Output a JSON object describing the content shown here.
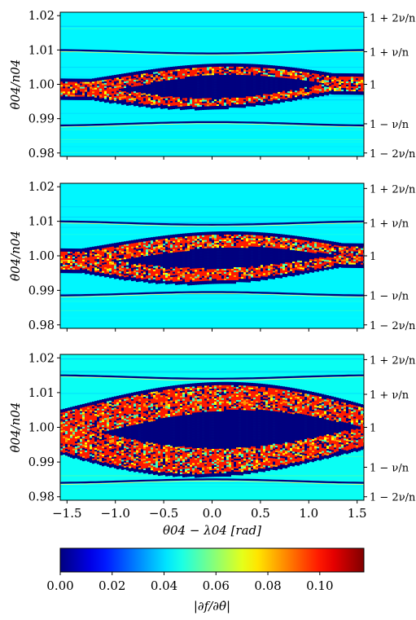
{
  "figure": {
    "colorbar": {
      "label": "|∂f/∂θ̇|",
      "range": [
        0.0,
        0.117
      ],
      "ticks": [
        0.0,
        0.02,
        0.04,
        0.06,
        0.08,
        0.1
      ],
      "tick_labels": [
        "0.00",
        "0.02",
        "0.04",
        "0.06",
        "0.08",
        "0.10"
      ],
      "colormap": "jet"
    }
  },
  "chart_data": [
    {
      "type": "heatmap",
      "ylabel": "θ̇04/n04",
      "xlabel": "",
      "xlim": [
        -1.57,
        1.57
      ],
      "ylim": [
        0.979,
        1.021
      ],
      "xticks": [
        -1.5,
        -1.0,
        -0.5,
        0.0,
        0.5,
        1.0,
        1.5
      ],
      "show_xtick_labels": false,
      "yticks": [
        0.98,
        0.99,
        1.0,
        1.01,
        1.02
      ],
      "ytick_labels": [
        "0.98",
        "0.99",
        "1.00",
        "1.01",
        "1.02"
      ],
      "right_yticks": [
        0.98,
        0.9885,
        1.0,
        1.0095,
        1.0195
      ],
      "right_ytick_labels": [
        "1 − 2ν/n",
        "1 − ν/n",
        "1",
        "1 + ν/n",
        "1 + 2ν/n"
      ],
      "background_value": 0.043,
      "island": {
        "center_x": 0.0,
        "center_y": 0.9995,
        "outer_halfwidth_y": 0.0065,
        "inner_halfwidth_y": 0.0035,
        "x_halfwidth": 1.25,
        "phase": 0.1
      },
      "separatrices_y": [
        1.0095,
        0.9885
      ]
    },
    {
      "type": "heatmap",
      "ylabel": "θ̇04/n04",
      "xlabel": "",
      "xlim": [
        -1.57,
        1.57
      ],
      "ylim": [
        0.979,
        1.021
      ],
      "xticks": [
        -1.5,
        -1.0,
        -0.5,
        0.0,
        0.5,
        1.0,
        1.5
      ],
      "show_xtick_labels": false,
      "yticks": [
        0.98,
        0.99,
        1.0,
        1.01,
        1.02
      ],
      "ytick_labels": [
        "0.98",
        "0.99",
        "1.00",
        "1.01",
        "1.02"
      ],
      "right_yticks": [
        0.98,
        0.9885,
        1.0,
        1.0095,
        1.0195
      ],
      "right_ytick_labels": [
        "1 − 2ν/n",
        "1 − ν/n",
        "1",
        "1 + ν/n",
        "1 + 2ν/n"
      ],
      "background_value": 0.043,
      "island": {
        "center_x": 0.0,
        "center_y": 0.9995,
        "outer_halfwidth_y": 0.0075,
        "inner_halfwidth_y": 0.003,
        "x_halfwidth": 1.35,
        "phase": 0.15
      },
      "separatrices_y": [
        1.0095,
        0.989
      ]
    },
    {
      "type": "heatmap",
      "ylabel": "θ̇04/n04",
      "xlabel": "θ04 − λ04 [rad]",
      "xlim": [
        -1.57,
        1.57
      ],
      "ylim": [
        0.979,
        1.021
      ],
      "xticks": [
        -1.5,
        -1.0,
        -0.5,
        0.0,
        0.5,
        1.0,
        1.5
      ],
      "xtick_labels": [
        "−1.5",
        "−1.0",
        "−0.5",
        "0.0",
        "0.5",
        "1.0",
        "1.5"
      ],
      "show_xtick_labels": true,
      "yticks": [
        0.98,
        0.99,
        1.0,
        1.01,
        1.02
      ],
      "ytick_labels": [
        "0.98",
        "0.99",
        "1.00",
        "1.01",
        "1.02"
      ],
      "right_yticks": [
        0.98,
        0.9885,
        1.0,
        1.0095,
        1.0195
      ],
      "right_ytick_labels": [
        "1 − 2ν/n",
        "1 − ν/n",
        "1",
        "1 + ν/n",
        "1 + 2ν/n"
      ],
      "background_value": 0.045,
      "island": {
        "center_x": 0.0,
        "center_y": 0.9995,
        "outer_halfwidth_y": 0.0135,
        "inner_halfwidth_y": 0.0055,
        "x_halfwidth": 1.6,
        "phase": 0.2
      },
      "separatrices_y": [
        1.0145,
        0.9845
      ]
    }
  ]
}
